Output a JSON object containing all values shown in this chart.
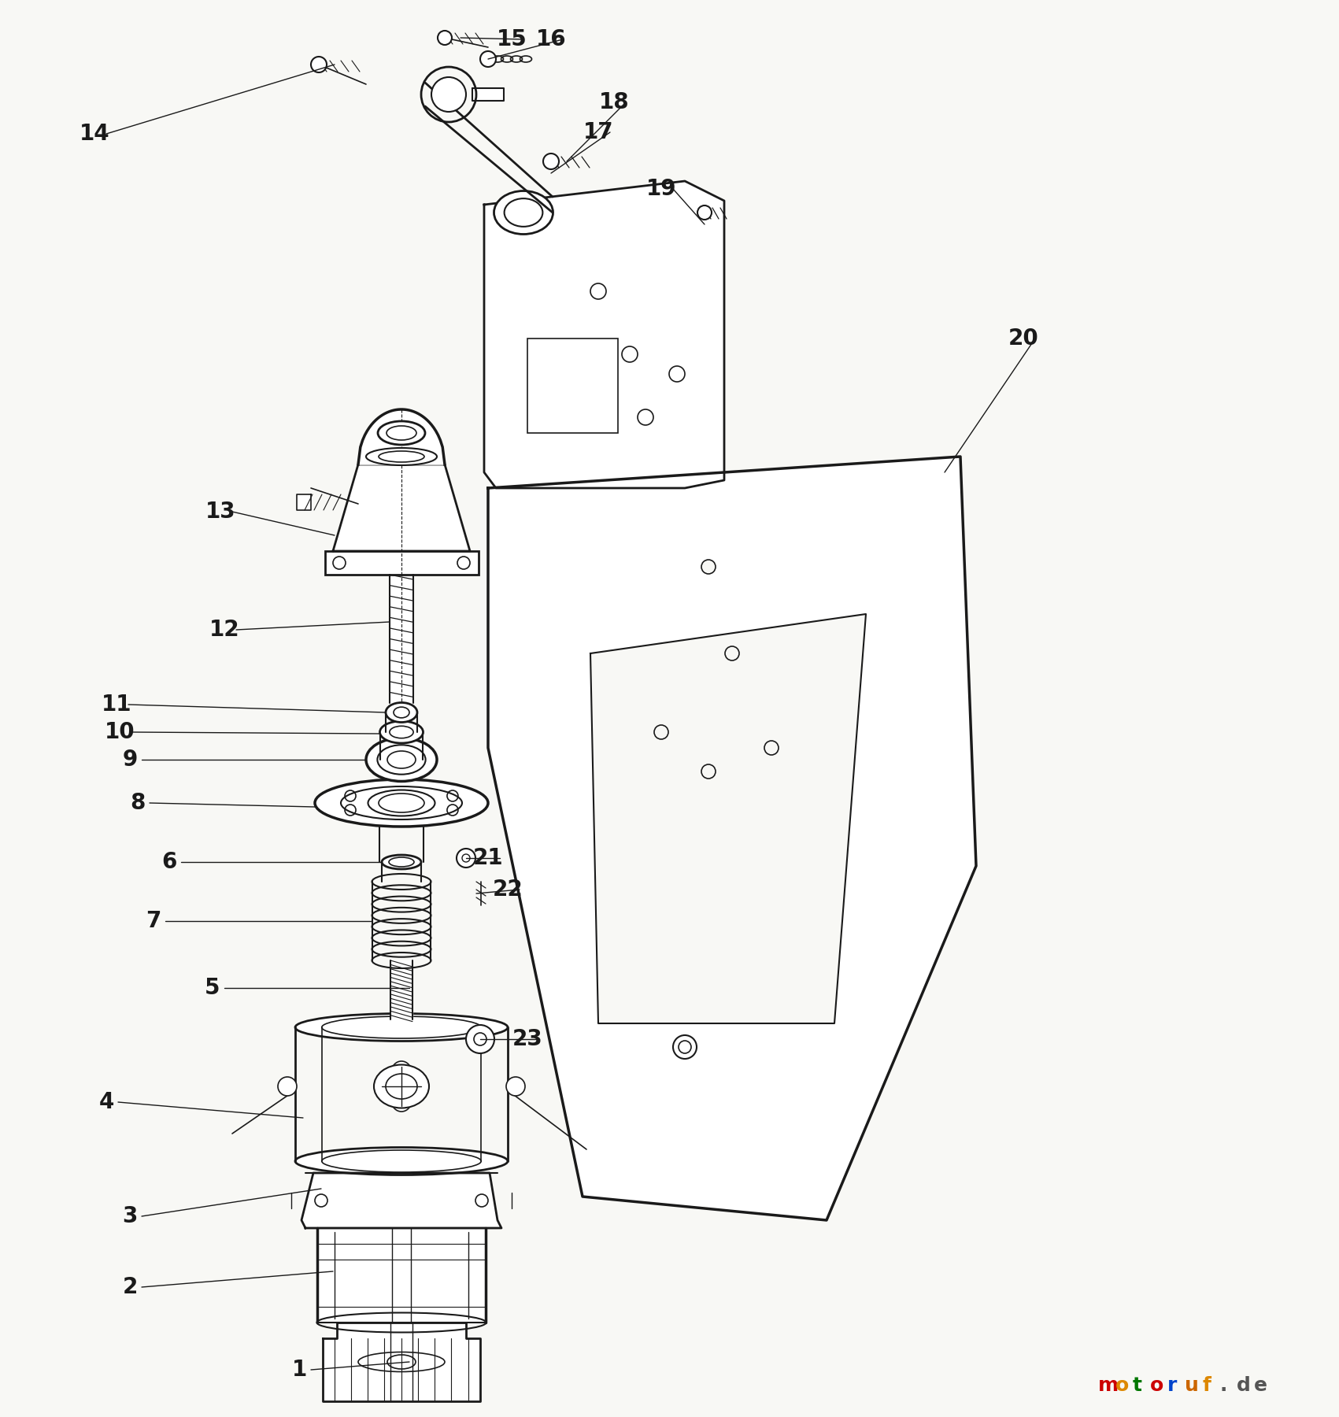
{
  "background_color": "#f8f8f5",
  "line_color": "#1a1a1a",
  "text_color": "#1a1a1a",
  "figsize": [
    17.01,
    18.0
  ],
  "dpi": 100,
  "watermark": {
    "chars": [
      "m",
      "o",
      "t",
      "o",
      "r",
      "u",
      "f",
      ".",
      "d",
      "e"
    ],
    "colors": [
      "#cc0000",
      "#dd8800",
      "#007700",
      "#cc0000",
      "#0044cc",
      "#cc6600",
      "#dd8800",
      "#555555",
      "#555555",
      "#555555"
    ]
  }
}
